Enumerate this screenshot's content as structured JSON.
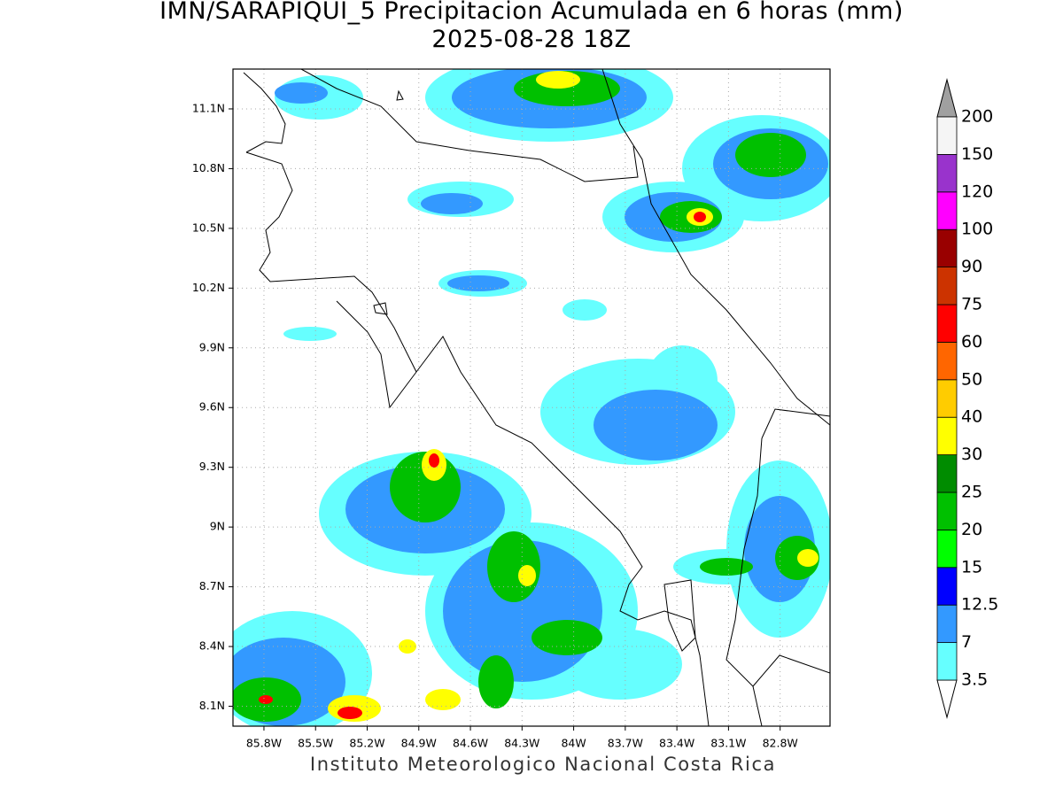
{
  "title": "IMN/SARAPIQUI_5 Precipitacion Acumulada en 6 horas (mm)",
  "subtitle": "2025-08-28 18Z",
  "footer": "Instituto Meteorologico Nacional Costa Rica",
  "map": {
    "lonlim": [
      -85.98,
      -82.51
    ],
    "latlim": [
      8.0,
      11.3
    ],
    "lonticks": [
      {
        "value": -85.8,
        "label": "85.8W"
      },
      {
        "value": -85.5,
        "label": "85.5W"
      },
      {
        "value": -85.2,
        "label": "85.2W"
      },
      {
        "value": -84.9,
        "label": "84.9W"
      },
      {
        "value": -84.6,
        "label": "84.6W"
      },
      {
        "value": -84.3,
        "label": "84.3W"
      },
      {
        "value": -84.0,
        "label": "84W"
      },
      {
        "value": -83.7,
        "label": "83.7W"
      },
      {
        "value": -83.4,
        "label": "83.4W"
      },
      {
        "value": -83.1,
        "label": "83.1W"
      },
      {
        "value": -82.8,
        "label": "82.8W"
      }
    ],
    "latticks": [
      {
        "value": 8.1,
        "label": "8.1N"
      },
      {
        "value": 8.4,
        "label": "8.4N"
      },
      {
        "value": 8.7,
        "label": "8.7N"
      },
      {
        "value": 9.0,
        "label": "9N"
      },
      {
        "value": 9.3,
        "label": "9.3N"
      },
      {
        "value": 9.6,
        "label": "9.6N"
      },
      {
        "value": 9.9,
        "label": "9.9N"
      },
      {
        "value": 10.2,
        "label": "10.2N"
      },
      {
        "value": 10.5,
        "label": "10.5N"
      },
      {
        "value": 10.8,
        "label": "10.8N"
      },
      {
        "value": 11.1,
        "label": "11.1N"
      }
    ],
    "grid": true
  },
  "colorbar": {
    "levels": [
      3.5,
      7,
      12.5,
      15,
      20,
      25,
      30,
      40,
      50,
      60,
      75,
      90,
      100,
      120,
      150,
      200
    ],
    "colors": [
      "#66ffff",
      "#3399ff",
      "#0000ff",
      "#00ff00",
      "#00c000",
      "#008c00",
      "#ffff00",
      "#ffcc00",
      "#ff6600",
      "#ff0000",
      "#cc3300",
      "#990000",
      "#ff00ff",
      "#9933cc",
      "#f5f5f5"
    ],
    "under_color": "#ffffff",
    "over_color": "#a0a0a0"
  }
}
